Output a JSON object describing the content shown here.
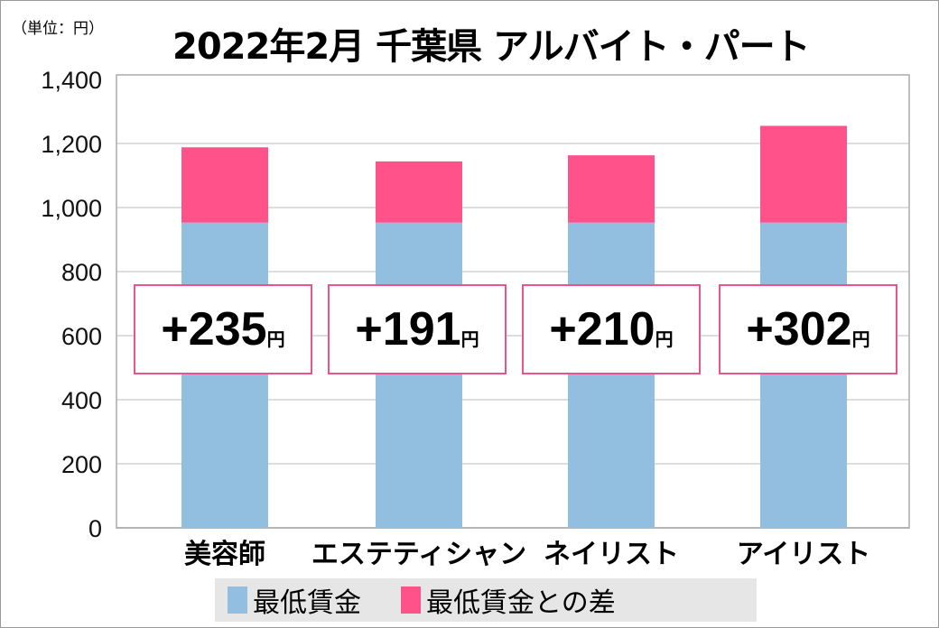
{
  "chart_data": {
    "type": "bar",
    "stacked": true,
    "title": "2022年2月 千葉県 アルバイト・パート",
    "unit_label": "（単位：円）",
    "categories": [
      "美容師",
      "エステティシャン",
      "ネイリスト",
      "アイリスト"
    ],
    "series": [
      {
        "name": "最低賃金",
        "values": [
          953,
          953,
          953,
          953
        ],
        "color": "#92bedf"
      },
      {
        "name": "最低賃金との差",
        "values": [
          235,
          191,
          210,
          302
        ],
        "color": "#ff528b"
      }
    ],
    "diff_labels": [
      {
        "sign": "+",
        "value": "235",
        "unit": "円"
      },
      {
        "sign": "+",
        "value": "191",
        "unit": "円"
      },
      {
        "sign": "+",
        "value": "210",
        "unit": "円"
      },
      {
        "sign": "+",
        "value": "302",
        "unit": "円"
      }
    ],
    "yticks": [
      "0",
      "200",
      "400",
      "600",
      "800",
      "1,000",
      "1,200",
      "1,400"
    ],
    "ylim": [
      0,
      1400
    ],
    "grid": true,
    "legend_position": "bottom"
  }
}
